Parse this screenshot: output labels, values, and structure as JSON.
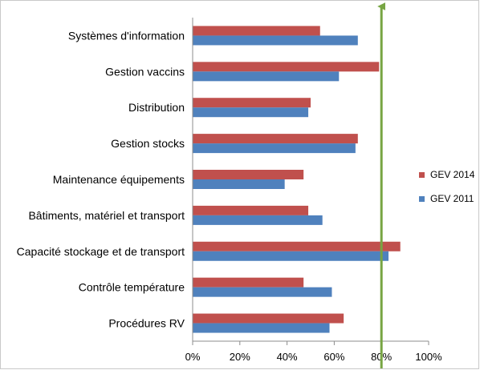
{
  "chart_data": {
    "type": "bar",
    "orientation": "horizontal",
    "title": "",
    "xlabel": "",
    "ylabel": "",
    "categories": [
      "Systèmes d'information",
      "Gestion vaccins",
      "Distribution",
      "Gestion stocks",
      "Maintenance équipements",
      "Bâtiments, matériel et transport",
      "Capacité stockage et de transport",
      "Contrôle température",
      "Procédures RV"
    ],
    "series": [
      {
        "name": "GEV 2014",
        "color": "#C0504D",
        "values": [
          54,
          79,
          50,
          70,
          47,
          49,
          88,
          47,
          64
        ]
      },
      {
        "name": "GEV 2011",
        "color": "#4F81BD",
        "values": [
          70,
          62,
          49,
          69,
          39,
          55,
          83,
          59,
          58
        ]
      }
    ],
    "xlim": [
      0,
      100
    ],
    "x_ticks": [
      "0%",
      "20%",
      "40%",
      "60%",
      "80%",
      "100%"
    ],
    "target_line": {
      "value": 80,
      "color": "#77A543"
    },
    "grid": false,
    "legend_position": "right"
  }
}
